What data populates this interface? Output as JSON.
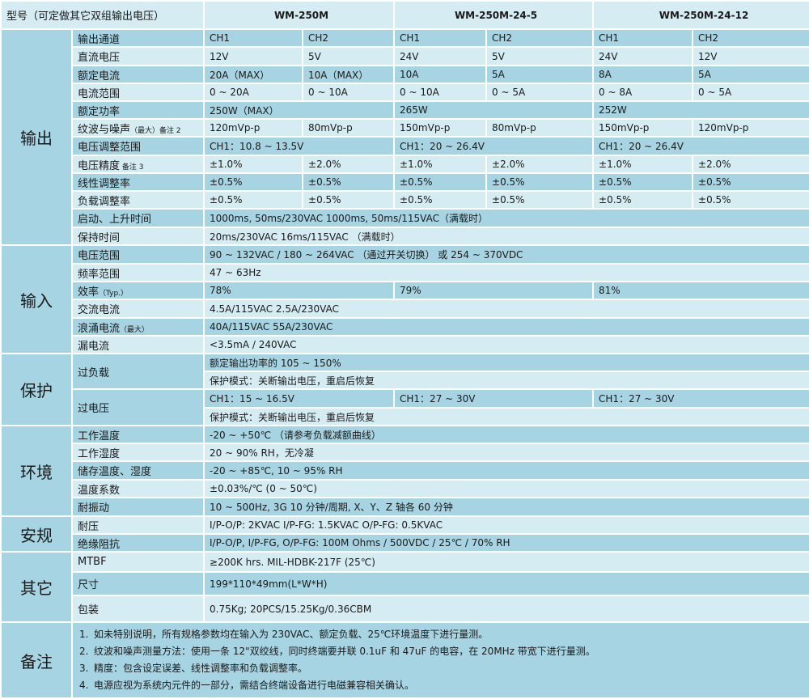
{
  "header": {
    "label": "型号（可定做其它双组输出电压）",
    "models": [
      "WM-250M",
      "WM-250M-24-5",
      "WM-250M-24-12"
    ]
  },
  "sections": [
    {
      "name": "输出",
      "rows": [
        {
          "label": "输出通道",
          "cells": [
            "CH1",
            "CH2",
            "CH1",
            "CH2",
            "CH1",
            "CH2"
          ]
        },
        {
          "label": "直流电压",
          "cells": [
            "12V",
            "5V",
            "24V",
            "5V",
            "24V",
            "12V"
          ]
        },
        {
          "label": "额定电流",
          "cells": [
            "20A（MAX）",
            "10A（MAX）",
            "10A",
            "5A",
            "8A",
            "5A"
          ]
        },
        {
          "label": "电流范围",
          "cells": [
            "0 ~ 20A",
            "0 ~ 10A",
            "0 ~ 10A",
            "0 ~ 5A",
            "0 ~ 8A",
            "0 ~ 5A"
          ]
        },
        {
          "label": "额定功率",
          "cells": [
            "250W（MAX）",
            "265W",
            "252W"
          ]
        },
        {
          "label": "纹波与噪声",
          "small": "（最大）备注 2",
          "cells": [
            "120mVp-p",
            "80mVp-p",
            "150mVp-p",
            "80mVp-p",
            "150mVp-p",
            "120mVp-p"
          ]
        },
        {
          "label": "电压调整范围",
          "cells": [
            "CH1：10.8 ~ 13.5V",
            "CH1：20 ~ 26.4V",
            "CH1：20 ~ 26.4V"
          ]
        },
        {
          "label": "电压精度",
          "small": " 备注 3",
          "cells": [
            "±1.0%",
            "±2.0%",
            "±1.0%",
            "±2.0%",
            "±1.0%",
            "±2.0%"
          ]
        },
        {
          "label": "线性调整率",
          "cells": [
            "±0.5%",
            "±0.5%",
            "±0.5%",
            "±0.5%",
            "±0.5%",
            "±0.5%"
          ]
        },
        {
          "label": "负载调整率",
          "cells": [
            "±0.5%",
            "±0.5%",
            "±0.5%",
            "±0.5%",
            "±0.5%",
            "±0.5%"
          ]
        },
        {
          "label": "启动、上升时间",
          "cells": [
            "1000ms, 50ms/230VAC    1000ms, 50ms/115VAC（满载时）"
          ]
        },
        {
          "label": "保持时间",
          "cells": [
            "20ms/230VAC    16ms/115VAC  （满载时）"
          ]
        }
      ]
    },
    {
      "name": "输入",
      "rows": [
        {
          "label": "电压范围",
          "cells": [
            "90 ~ 132VAC / 180 ~ 264VAC  （通过开关切换）      或  254 ~ 370VDC"
          ]
        },
        {
          "label": "频率范围",
          "cells": [
            "47 ~ 63Hz"
          ]
        },
        {
          "label": "效率",
          "small": "（Typ.）",
          "cells": [
            "78%",
            "79%",
            "81%"
          ]
        },
        {
          "label": "交流电流",
          "cells": [
            "4.5A/115VAC       2.5A/230VAC"
          ]
        },
        {
          "label": "浪涌电流",
          "small": "（最大）",
          "cells": [
            "40A/115VAC          55A/230VAC"
          ]
        },
        {
          "label": "漏电流",
          "cells": [
            "<3.5mA / 240VAC"
          ]
        }
      ]
    },
    {
      "name": "保护",
      "rows": [
        {
          "label": "过负载",
          "lines": [
            [
              "额定输出功率的 105 ~ 150%"
            ],
            [
              "保护模式：关断输出电压，重启后恢复"
            ]
          ]
        },
        {
          "label": "过电压",
          "lines": [
            [
              "CH1：15 ~ 16.5V",
              "CH1：27 ~ 30V",
              "CH1：27 ~ 30V"
            ],
            [
              "保护模式：关断输出电压，重启后恢复"
            ]
          ]
        }
      ]
    },
    {
      "name": "环境",
      "rows": [
        {
          "label": "工作温度",
          "cells": [
            "-20 ~ +50℃  （请参考负载减额曲线）"
          ]
        },
        {
          "label": "工作湿度",
          "cells": [
            "20 ~ 90% RH，无冷凝"
          ]
        },
        {
          "label": "储存温度、湿度",
          "cells": [
            "-20 ~ +85℃, 10 ~ 95% RH"
          ]
        },
        {
          "label": "温度系数",
          "cells": [
            "±0.03%/℃ (0 ~ 50℃)"
          ]
        },
        {
          "label": "耐振动",
          "cells": [
            "10 ~ 500Hz, 3G 10 分钟/周期, X、Y、Z 轴各 60 分钟"
          ]
        }
      ]
    },
    {
      "name": "安规",
      "rows": [
        {
          "label": "耐压",
          "cells": [
            "I/P-O/P: 2KVAC       I/P-FG: 1.5KVAC     O/P-FG: 0.5KVAC"
          ]
        },
        {
          "label": "绝缘阻抗",
          "cells": [
            "I/P-O/P, I/P-FG, O/P-FG: 100M Ohms / 500VDC / 25℃  / 70% RH"
          ]
        }
      ]
    },
    {
      "name": "其它",
      "rows": [
        {
          "label": "MTBF",
          "cells": [
            "≥200K hrs. MIL-HDBK-217F (25℃)"
          ]
        },
        {
          "label": "尺寸",
          "cells": [
            "199*110*49mm(L*W*H)"
          ]
        },
        {
          "label": "包装",
          "cells": [
            "0.75Kg; 20PCS/15.25Kg/0.36CBM"
          ]
        }
      ]
    }
  ],
  "notes": {
    "name": "备注",
    "items": [
      {
        "num": "1.",
        "text": "如未特别说明，所有规格参数均在输入为 230VAC、额定负载、25℃环境温度下进行量测。"
      },
      {
        "num": "2.",
        "text": "纹波和噪声测量方法：使用一条 12\"双绞线，同时终端要并联 0.1uF 和 47uF 的电容，在 20MHz 带宽下进行量测。"
      },
      {
        "num": "3.",
        "text": "精度：包含设定误差、线性调整率和负载调整率。"
      },
      {
        "num": "4.",
        "text": "电源应视为系统内元件的一部分，需结合终端设备进行电磁兼容相关确认。"
      }
    ]
  }
}
